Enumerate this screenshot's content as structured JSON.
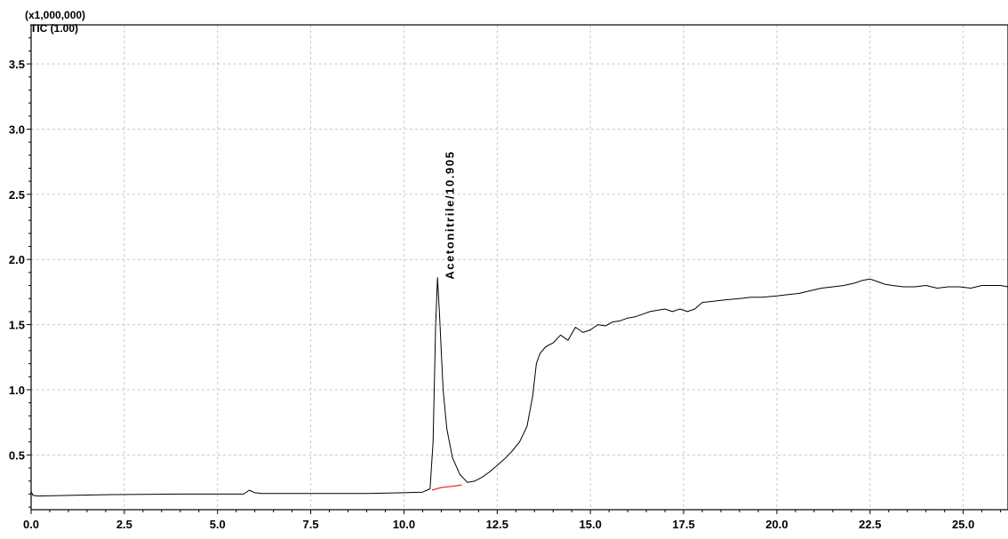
{
  "header": {
    "scale_label": "(x1,000,000)",
    "trace_label": "TIC (1.00)"
  },
  "chart_data": {
    "type": "line",
    "title": "",
    "xlabel": "",
    "ylabel": "",
    "xlim": [
      0,
      26.2
    ],
    "ylim": [
      0.08,
      3.8
    ],
    "grid": true,
    "x_ticks": [
      0.0,
      2.5,
      5.0,
      7.5,
      10.0,
      12.5,
      15.0,
      17.5,
      20.0,
      22.5,
      25.0
    ],
    "x_tick_labels": [
      "0.0",
      "2.5",
      "5.0",
      "7.5",
      "10.0",
      "12.5",
      "15.0",
      "17.5",
      "20.0",
      "22.5",
      "25.0"
    ],
    "y_ticks": [
      0.5,
      1.0,
      1.5,
      2.0,
      2.5,
      3.0,
      3.5
    ],
    "y_tick_labels": [
      "0.5",
      "1.0",
      "1.5",
      "2.0",
      "2.5",
      "3.0",
      "3.5"
    ],
    "series": [
      {
        "color": "#000000",
        "x": [
          0.0,
          0.05,
          0.2,
          1.0,
          2.0,
          3.0,
          4.0,
          5.0,
          5.7,
          5.85,
          6.0,
          6.2,
          7.0,
          8.0,
          9.0,
          10.0,
          10.5,
          10.7,
          10.78,
          10.85,
          10.9,
          10.95,
          11.05,
          11.15,
          11.3,
          11.5,
          11.7,
          11.9,
          12.1,
          12.3,
          12.5,
          12.7,
          12.9,
          13.1,
          13.3,
          13.45,
          13.55,
          13.65,
          13.8,
          14.0,
          14.2,
          14.4,
          14.6,
          14.8,
          15.0,
          15.2,
          15.4,
          15.6,
          15.8,
          16.0,
          16.2,
          16.4,
          16.6,
          16.8,
          17.0,
          17.2,
          17.4,
          17.6,
          17.8,
          18.0,
          18.3,
          18.6,
          19.0,
          19.3,
          19.6,
          20.0,
          20.3,
          20.6,
          20.9,
          21.2,
          21.5,
          21.8,
          22.1,
          22.3,
          22.5,
          22.7,
          22.9,
          23.1,
          23.4,
          23.7,
          24.0,
          24.3,
          24.6,
          24.9,
          25.2,
          25.5,
          25.8,
          26.0,
          26.2
        ],
        "y": [
          0.22,
          0.19,
          0.185,
          0.19,
          0.195,
          0.198,
          0.2,
          0.2,
          0.2,
          0.23,
          0.21,
          0.205,
          0.205,
          0.205,
          0.205,
          0.21,
          0.215,
          0.24,
          0.6,
          1.5,
          1.86,
          1.6,
          1.0,
          0.7,
          0.48,
          0.35,
          0.29,
          0.3,
          0.33,
          0.37,
          0.42,
          0.47,
          0.53,
          0.6,
          0.72,
          0.95,
          1.2,
          1.28,
          1.33,
          1.36,
          1.42,
          1.38,
          1.48,
          1.44,
          1.46,
          1.5,
          1.49,
          1.52,
          1.53,
          1.55,
          1.56,
          1.58,
          1.6,
          1.61,
          1.62,
          1.6,
          1.62,
          1.6,
          1.62,
          1.67,
          1.68,
          1.69,
          1.7,
          1.71,
          1.71,
          1.72,
          1.73,
          1.74,
          1.76,
          1.78,
          1.79,
          1.8,
          1.82,
          1.84,
          1.85,
          1.83,
          1.81,
          1.8,
          1.79,
          1.79,
          1.8,
          1.78,
          1.79,
          1.79,
          1.78,
          1.8,
          1.8,
          1.8,
          1.79
        ]
      },
      {
        "color": "#e8322a",
        "x": [
          10.75,
          11.0,
          11.3,
          11.55
        ],
        "y": [
          0.23,
          0.25,
          0.26,
          0.27
        ]
      }
    ],
    "annotations": [
      {
        "text": "Acetonitrile/10.905",
        "x": 10.905,
        "y": 1.86
      }
    ]
  }
}
